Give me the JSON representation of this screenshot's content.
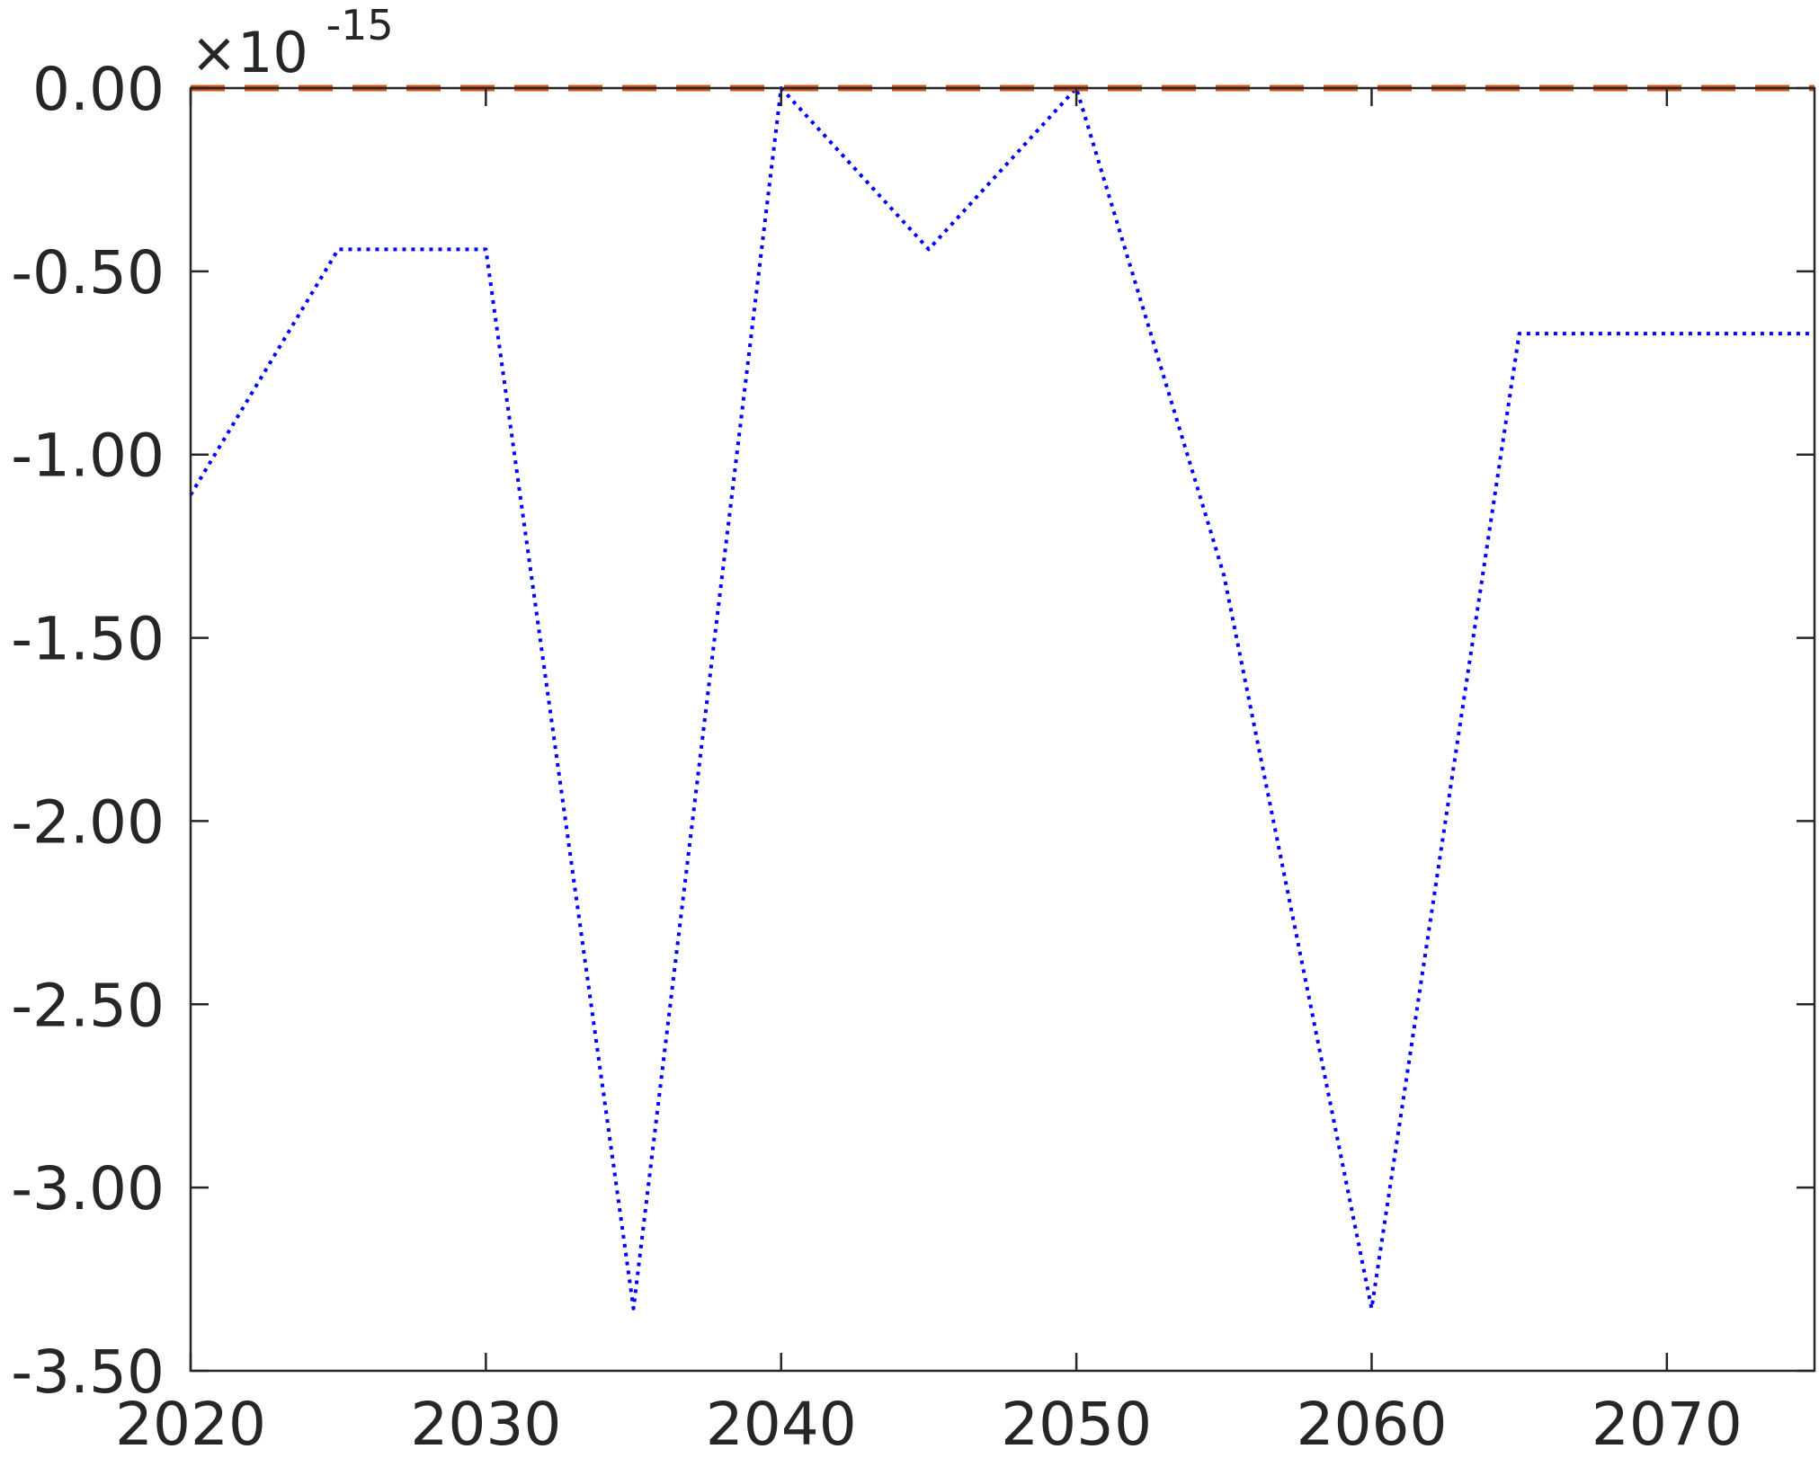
{
  "chart_data": {
    "type": "line",
    "title": "",
    "xlabel": "",
    "ylabel": "",
    "xlim": [
      2020,
      2075
    ],
    "ylim": [
      -3.5,
      0
    ],
    "x_ticks": [
      2020,
      2030,
      2040,
      2050,
      2060,
      2070
    ],
    "x_tick_labels": [
      "2020",
      "2030",
      "2040",
      "2050",
      "2060",
      "2070"
    ],
    "y_ticks": [
      0,
      -0.5,
      -1,
      -1.5,
      -2,
      -2.5,
      -3,
      -3.5
    ],
    "y_tick_labels": [
      "0.00",
      "-0.50",
      "-1.00",
      "-1.50",
      "-2.00",
      "-2.50",
      "-3.00",
      "-3.50"
    ],
    "y_exponent": {
      "prefix": "×10",
      "power": "-15"
    },
    "grid": false,
    "legend": "none",
    "series": [
      {
        "color": "#0000ff",
        "line_style": "dotted",
        "x": [
          2020,
          2025,
          2030,
          2035,
          2040,
          2045,
          2050,
          2055,
          2060,
          2065,
          2070,
          2075
        ],
        "y": [
          -1.11,
          -0.44,
          -0.44,
          -3.33,
          0,
          -0.44,
          0,
          -1.33,
          -3.33,
          -0.67,
          -0.67,
          -0.67
        ]
      },
      {
        "color": "#d95319",
        "line_style": "dashed",
        "x": [
          2020,
          2075
        ],
        "y": [
          0,
          0
        ]
      }
    ]
  }
}
